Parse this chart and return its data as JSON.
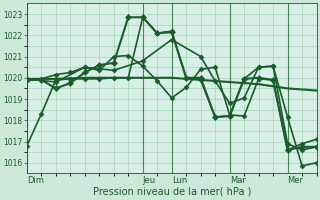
{
  "bg_color": "#cce8d8",
  "plot_bg_color": "#d8efe8",
  "grid_color": "#99ccaa",
  "line_color": "#1a5c2a",
  "ylabel": "Pression niveau de la mer( hPa )",
  "ylim": [
    1015.5,
    1023.5
  ],
  "yticks": [
    1016,
    1017,
    1018,
    1019,
    1020,
    1021,
    1022,
    1023
  ],
  "day_labels": [
    "Dim",
    "Jeu",
    "Lun",
    "Mar",
    "Mer"
  ],
  "day_positions": [
    0,
    96,
    120,
    168,
    216
  ],
  "total_hours": 240,
  "series": [
    {
      "x": [
        0,
        12,
        24,
        36,
        48,
        60,
        72,
        84,
        96,
        108,
        120,
        132,
        144,
        156,
        168,
        180,
        192,
        204,
        216,
        228,
        240
      ],
      "y": [
        1016.8,
        1018.3,
        1019.9,
        1019.95,
        1019.95,
        1019.95,
        1020.0,
        1020.0,
        1022.85,
        1022.1,
        1022.2,
        1020.0,
        1019.9,
        1018.15,
        1018.2,
        1019.95,
        1020.5,
        1020.55,
        1016.9,
        1016.6,
        1016.75
      ],
      "lw": 1.2,
      "ms": 2.5,
      "marker": "D",
      "ls": "-"
    },
    {
      "x": [
        0,
        12,
        24,
        36,
        48,
        60,
        72,
        84,
        96,
        108,
        120,
        132,
        144,
        156,
        168,
        180,
        192,
        204,
        216,
        228,
        240
      ],
      "y": [
        1019.9,
        1019.9,
        1019.5,
        1019.75,
        1020.25,
        1020.6,
        1020.7,
        1022.85,
        1022.85,
        1022.1,
        1022.15,
        1020.0,
        1020.0,
        1018.15,
        1018.2,
        1019.95,
        1020.0,
        1019.9,
        1016.6,
        1016.75,
        1016.75
      ],
      "lw": 1.5,
      "ms": 3.0,
      "marker": "D",
      "ls": "-"
    },
    {
      "x": [
        0,
        24,
        48,
        72,
        96,
        120,
        144,
        168,
        192,
        216,
        240
      ],
      "y": [
        1019.95,
        1019.95,
        1020.0,
        1020.0,
        1020.0,
        1020.0,
        1019.9,
        1019.8,
        1019.7,
        1019.5,
        1019.4
      ],
      "lw": 1.5,
      "ms": 0,
      "marker": "None",
      "ls": "-"
    },
    {
      "x": [
        0,
        24,
        48,
        72,
        96,
        120,
        144,
        156,
        168,
        180,
        192,
        204,
        216,
        228,
        240
      ],
      "y": [
        1019.95,
        1019.8,
        1020.5,
        1020.35,
        1020.8,
        1021.8,
        1021.0,
        1019.85,
        1018.8,
        1019.05,
        1020.5,
        1020.55,
        1018.15,
        1015.85,
        1016.0
      ],
      "lw": 1.2,
      "ms": 2.5,
      "marker": "D",
      "ls": "-"
    },
    {
      "x": [
        0,
        12,
        24,
        36,
        48,
        60,
        72,
        84,
        96,
        108,
        120,
        132,
        144,
        156,
        168,
        180,
        192,
        204,
        216,
        228,
        240
      ],
      "y": [
        1019.9,
        1019.95,
        1020.15,
        1020.25,
        1020.5,
        1020.35,
        1021.0,
        1021.05,
        1020.55,
        1019.85,
        1019.05,
        1019.55,
        1020.4,
        1020.5,
        1018.25,
        1018.2,
        1019.95,
        1019.9,
        1016.6,
        1016.9,
        1017.1
      ],
      "lw": 1.2,
      "ms": 2.5,
      "marker": "D",
      "ls": "-"
    }
  ]
}
